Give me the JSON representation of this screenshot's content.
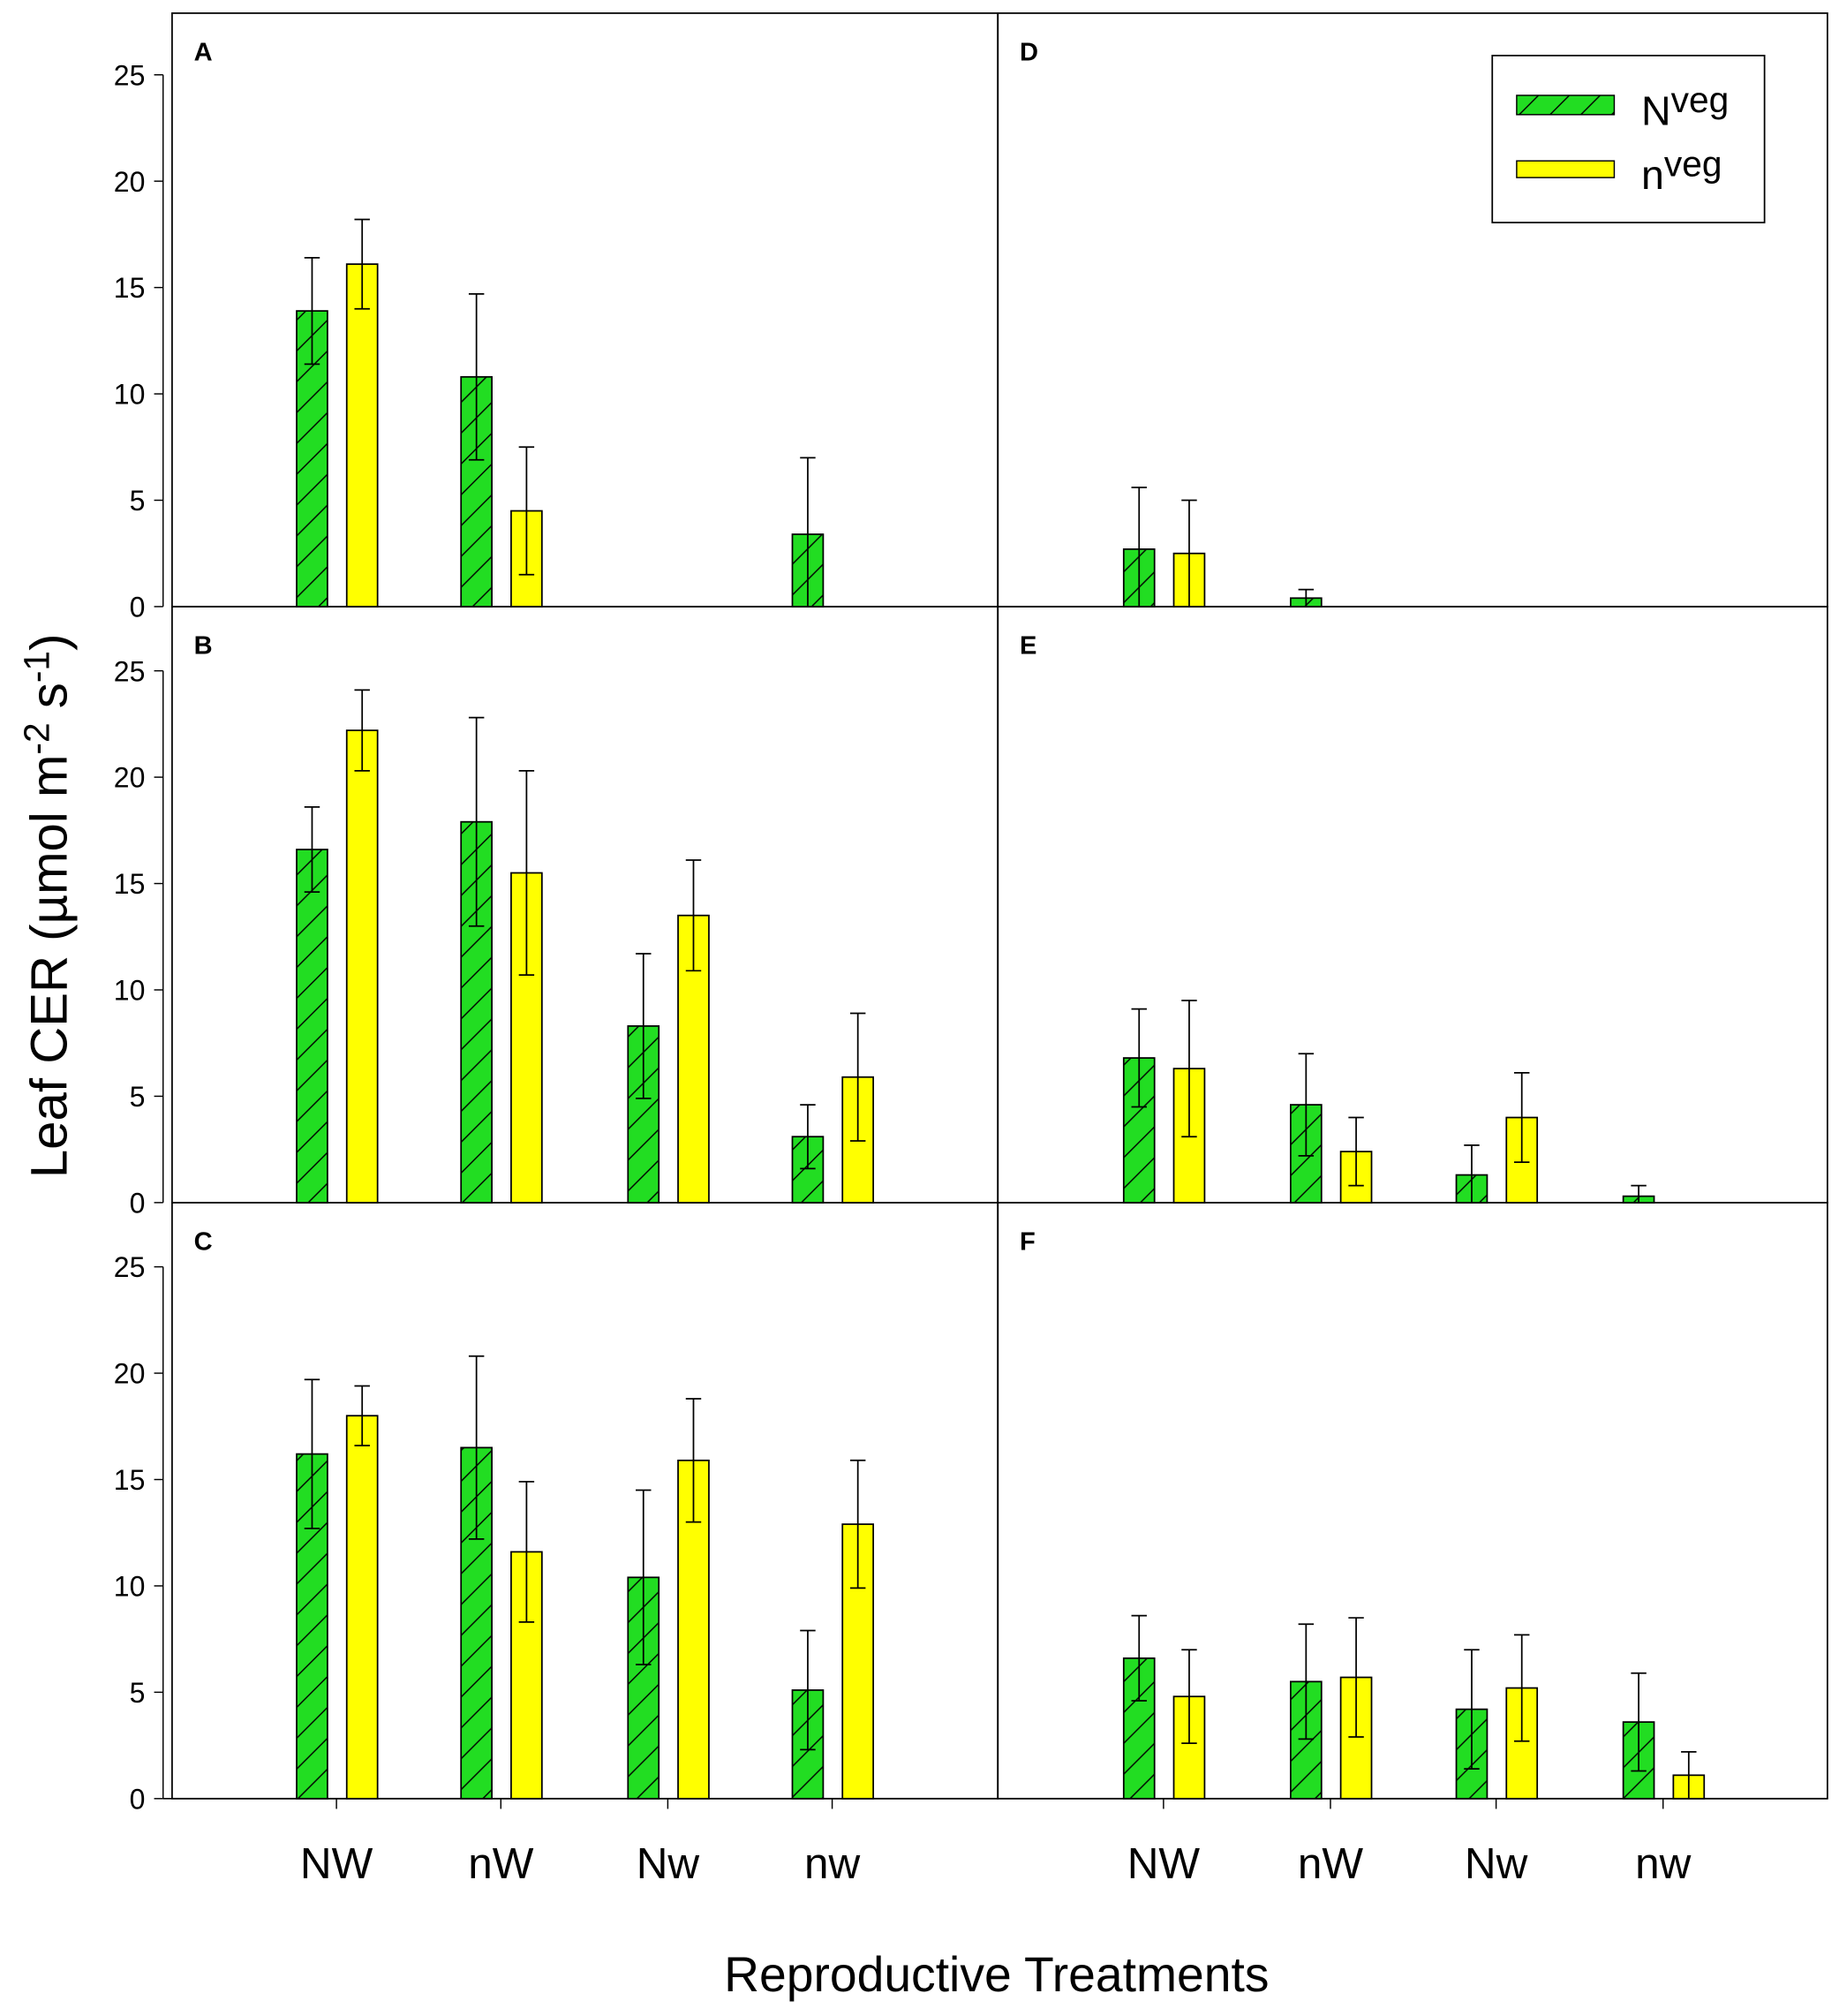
{
  "chart_data": {
    "type": "bar",
    "ylabel": "Leaf CER (µmol m-2 s-1)",
    "ylabel_parts": {
      "main": "Leaf CER (µmol m",
      "sup1": "-2",
      "mid": " s",
      "sup2": "-1",
      "end": ")"
    },
    "xlabel": "Reproductive Treatments",
    "categories": [
      "NW",
      "nW",
      "Nw",
      "nw"
    ],
    "ylim": [
      0,
      25
    ],
    "yticks": [
      "0",
      "5",
      "10",
      "15",
      "20",
      "25"
    ],
    "legend": [
      {
        "name": "N",
        "sup": "veg",
        "color": "#22dd22",
        "hatch": true
      },
      {
        "name": "n",
        "sup": "veg",
        "color": "#ffff00",
        "hatch": false
      }
    ],
    "legend_position": "top-right of panel D",
    "panels": [
      {
        "label": "A",
        "series": [
          {
            "name": "Nveg",
            "values": [
              13.9,
              10.8,
              0,
              3.4
            ],
            "err": [
              2.5,
              3.9,
              0,
              3.6
            ]
          },
          {
            "name": "nveg",
            "values": [
              16.1,
              4.5,
              0,
              0
            ],
            "err": [
              2.1,
              3.0,
              0,
              0
            ]
          }
        ]
      },
      {
        "label": "B",
        "series": [
          {
            "name": "Nveg",
            "values": [
              16.6,
              17.9,
              8.3,
              3.1
            ],
            "err": [
              2.0,
              4.9,
              3.4,
              1.5
            ]
          },
          {
            "name": "nveg",
            "values": [
              22.2,
              15.5,
              13.5,
              5.9
            ],
            "err": [
              1.9,
              4.8,
              2.6,
              3.0
            ]
          }
        ]
      },
      {
        "label": "C",
        "series": [
          {
            "name": "Nveg",
            "values": [
              16.2,
              16.5,
              10.4,
              5.1
            ],
            "err": [
              3.5,
              4.3,
              4.1,
              2.8
            ]
          },
          {
            "name": "nveg",
            "values": [
              18.0,
              11.6,
              15.9,
              12.9
            ],
            "err": [
              1.4,
              3.3,
              2.9,
              3.0
            ]
          }
        ]
      },
      {
        "label": "D",
        "series": [
          {
            "name": "Nveg",
            "values": [
              2.7,
              0.4,
              0,
              0
            ],
            "err": [
              2.9,
              0.4,
              0,
              0
            ]
          },
          {
            "name": "nveg",
            "values": [
              2.5,
              0,
              0,
              0
            ],
            "err": [
              2.5,
              0,
              0,
              0
            ]
          }
        ]
      },
      {
        "label": "E",
        "series": [
          {
            "name": "Nveg",
            "values": [
              6.8,
              4.6,
              1.3,
              0.3
            ],
            "err": [
              2.3,
              2.4,
              1.4,
              0.5
            ]
          },
          {
            "name": "nveg",
            "values": [
              6.3,
              2.4,
              4.0,
              0
            ],
            "err": [
              3.2,
              1.6,
              2.1,
              0
            ]
          }
        ]
      },
      {
        "label": "F",
        "series": [
          {
            "name": "Nveg",
            "values": [
              6.6,
              5.5,
              4.2,
              3.6
            ],
            "err": [
              2.0,
              2.7,
              2.8,
              2.3
            ]
          },
          {
            "name": "nveg",
            "values": [
              4.8,
              5.7,
              5.2,
              1.1
            ],
            "err": [
              2.2,
              2.8,
              2.5,
              1.1
            ]
          }
        ]
      }
    ]
  }
}
